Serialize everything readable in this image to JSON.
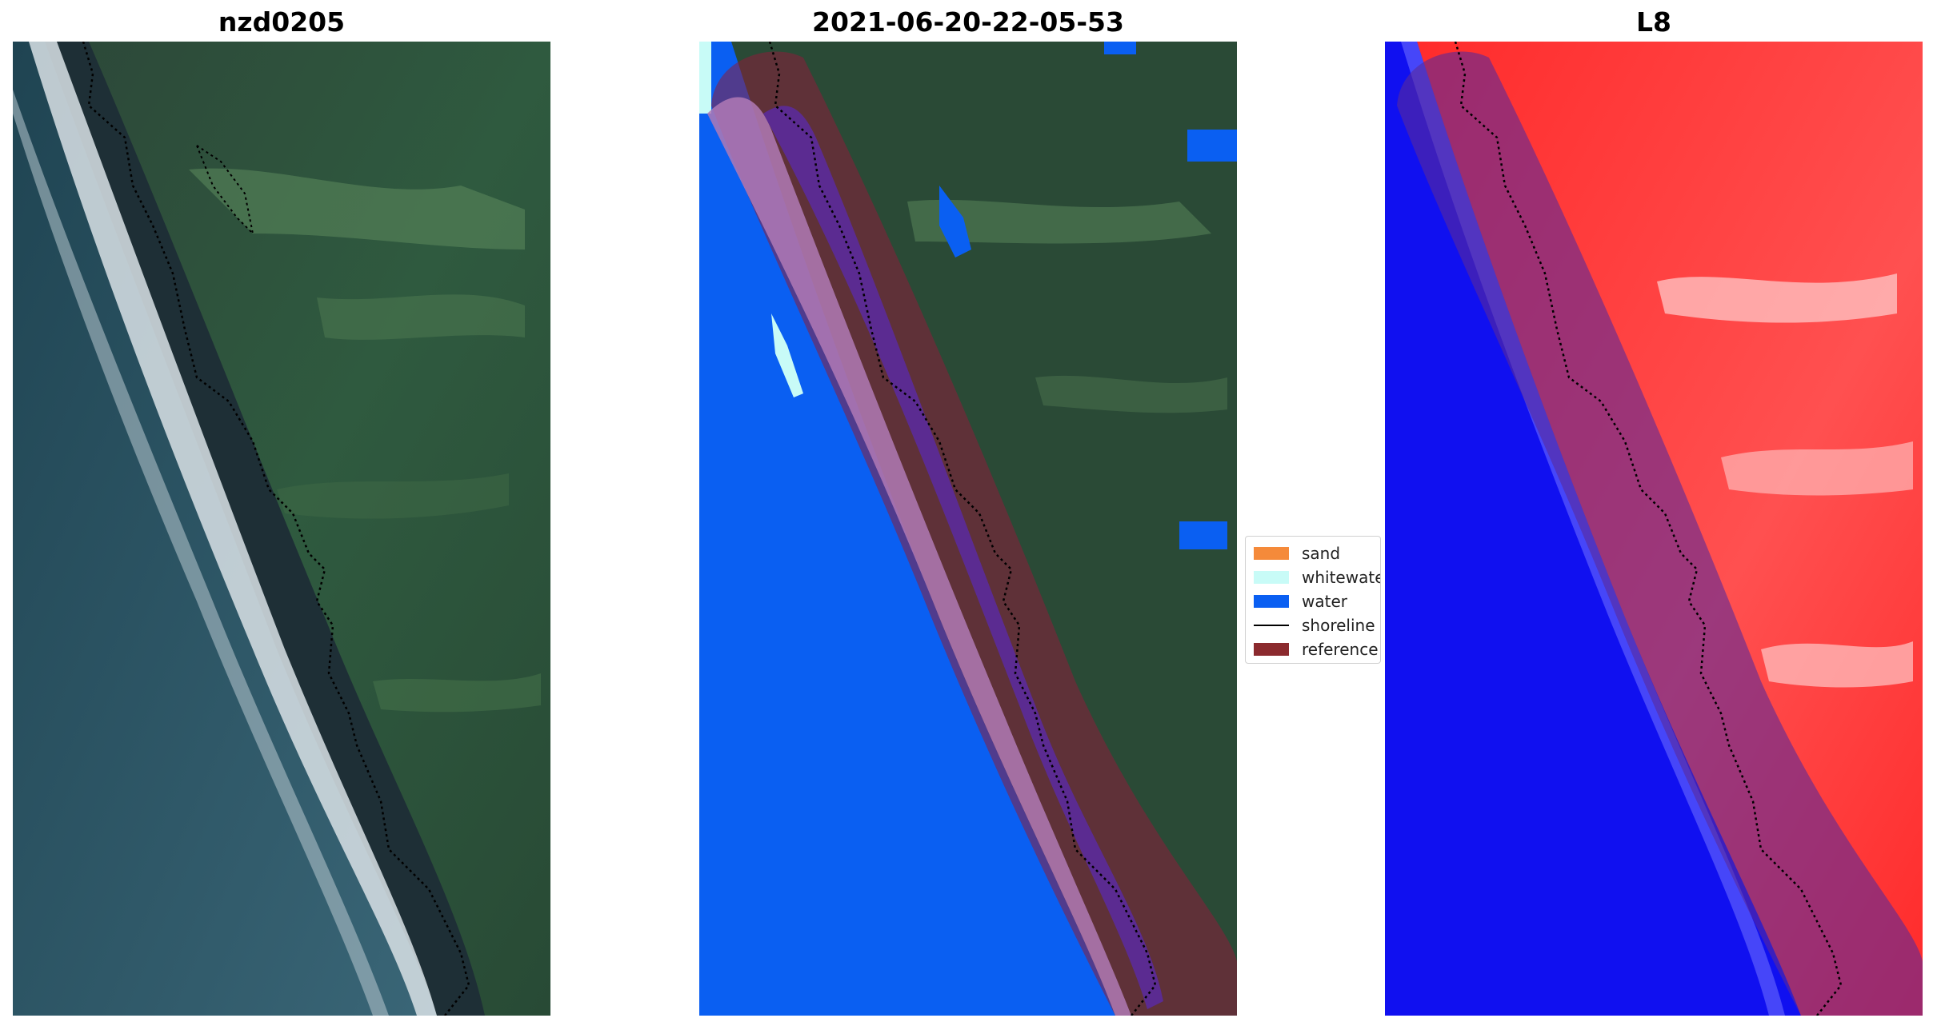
{
  "panels": {
    "left": {
      "title": "nzd0205"
    },
    "middle": {
      "title": "2021-06-20-22-05-53"
    },
    "right": {
      "title": "L8"
    }
  },
  "legend": {
    "items": [
      {
        "label": "sand",
        "color": "#f58a3a",
        "kind": "patch"
      },
      {
        "label": "whitewater",
        "color": "#c8fbf7",
        "kind": "patch"
      },
      {
        "label": "water",
        "color": "#0a5ff2",
        "kind": "patch"
      },
      {
        "label": "shoreline",
        "color": "#000000",
        "kind": "line"
      },
      {
        "label": "reference shoreline buffer",
        "color": "#8b2a2e",
        "kind": "patch"
      }
    ]
  },
  "colors": {
    "ocean": "#2c4f5e",
    "land": "#2a4a36",
    "surf": "#d9e2e6",
    "water_class": "#0a5ff2",
    "buffer": "#8b1e3a",
    "sand_overlay": "#b07ab5",
    "index_high": "#ff2020",
    "index_low": "#1010f0"
  }
}
